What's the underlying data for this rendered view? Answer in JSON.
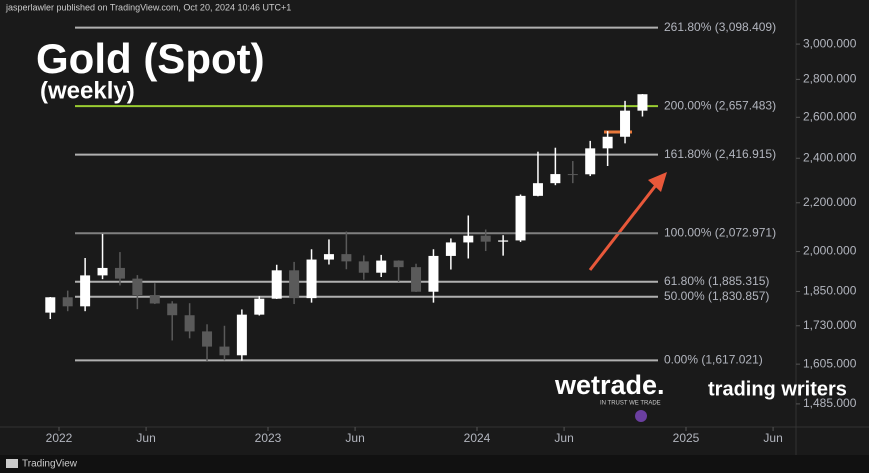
{
  "chart_data": {
    "type": "candlestick",
    "header": "jasperlawler published on TradingView.com, Oct 20, 2024 10:46 UTC+1",
    "title": "Gold (Spot)",
    "subtitle": "(weekly)",
    "footer": "TradingView",
    "logo_1": "wetrade.",
    "logo_1_tagline": "IN TRUST WE TRADE",
    "logo_2": "trading writers",
    "x": [
      "2021-12",
      "2022-01",
      "2022-02",
      "2022-03",
      "2022-04",
      "2022-05",
      "2022-06",
      "2022-07",
      "2022-08",
      "2022-09",
      "2022-10",
      "2022-11",
      "2022-12",
      "2023-01",
      "2023-02",
      "2023-03",
      "2023-04",
      "2023-05",
      "2023-06",
      "2023-07",
      "2023-08",
      "2023-09",
      "2023-10",
      "2023-11",
      "2023-12",
      "2024-01",
      "2024-02",
      "2024-03",
      "2024-04",
      "2024-05",
      "2024-06",
      "2024-07",
      "2024-08",
      "2024-09",
      "2024-10"
    ],
    "open": [
      1775,
      1829,
      1797,
      1909,
      1937,
      1897,
      1837,
      1807,
      1766,
      1711,
      1661,
      1633,
      1768,
      1824,
      1928,
      1826,
      1969,
      1990,
      1962,
      1919,
      1965,
      1940,
      1849,
      1983,
      2036,
      2063,
      2039,
      2044,
      2230,
      2286,
      2327,
      2326,
      2447,
      2503,
      2634
    ],
    "high": [
      1830,
      1853,
      1975,
      2070,
      1998,
      1910,
      1880,
      1815,
      1808,
      1735,
      1730,
      1786,
      1833,
      1949,
      1960,
      2009,
      2048,
      2080,
      1985,
      1987,
      1966,
      1953,
      2009,
      2052,
      2146,
      2088,
      2065,
      2236,
      2431,
      2450,
      2387,
      2483,
      2531,
      2685,
      2721
    ],
    "low": [
      1753,
      1780,
      1780,
      1895,
      1872,
      1787,
      1805,
      1681,
      1688,
      1615,
      1617,
      1616,
      1765,
      1823,
      1805,
      1810,
      1950,
      1932,
      1893,
      1903,
      1885,
      1848,
      1810,
      1931,
      1973,
      2002,
      1984,
      2038,
      2228,
      2277,
      2286,
      2318,
      2364,
      2471,
      2604
    ],
    "close": [
      1829,
      1797,
      1909,
      1937,
      1897,
      1837,
      1807,
      1766,
      1711,
      1661,
      1633,
      1768,
      1824,
      1928,
      1826,
      1969,
      1990,
      1962,
      1919,
      1965,
      1940,
      1849,
      1983,
      2036,
      2063,
      2039,
      2044,
      2230,
      2286,
      2327,
      2326,
      2447,
      2503,
      2634,
      2720
    ],
    "up_color": "#ffffff",
    "down_color": "#5a5a5a",
    "log_scale": true,
    "ylim": [
      1425,
      3270
    ],
    "yticks": [
      {
        "value": 3000,
        "label": "3,000.000"
      },
      {
        "value": 2800,
        "label": "2,800.000"
      },
      {
        "value": 2600,
        "label": "2,600.000"
      },
      {
        "value": 2400,
        "label": "2,400.000"
      },
      {
        "value": 2200,
        "label": "2,200.000"
      },
      {
        "value": 2000,
        "label": "2,000.000"
      },
      {
        "value": 1850,
        "label": "1,850.000"
      },
      {
        "value": 1730,
        "label": "1,730.000"
      },
      {
        "value": 1605,
        "label": "1,605.000"
      },
      {
        "value": 1485,
        "label": "1,485.000"
      }
    ],
    "xticks": [
      {
        "value": "2022-01",
        "label": "2022"
      },
      {
        "value": "2022-06",
        "label": "Jun"
      },
      {
        "value": "2023-01",
        "label": "2023"
      },
      {
        "value": "2023-06",
        "label": "Jun"
      },
      {
        "value": "2024-01",
        "label": "2024"
      },
      {
        "value": "2024-06",
        "label": "Jun"
      },
      {
        "value": "2025-01",
        "label": "2025"
      },
      {
        "value": "2025-06",
        "label": "Jun"
      }
    ],
    "fib_levels": [
      {
        "value": 3098.409,
        "label": "261.80% (3,098.409)",
        "color": "#b0b0b0"
      },
      {
        "value": 2657.483,
        "label": "200.00% (2,657.483)",
        "color": "#9acd32"
      },
      {
        "value": 2416.915,
        "label": "161.80% (2,416.915)",
        "color": "#b0b0b0"
      },
      {
        "value": 2072.971,
        "label": "100.00% (2,072.971)",
        "color": "#808080"
      },
      {
        "value": 1885.315,
        "label": "61.80% (1,885.315)",
        "color": "#b0b0b0"
      },
      {
        "value": 1830.857,
        "label": "50.00% (1,830.857)",
        "color": "#b0b0b0"
      },
      {
        "value": 1617.021,
        "label": "0.00% (1,617.021)",
        "color": "#b0b0b0"
      }
    ]
  }
}
